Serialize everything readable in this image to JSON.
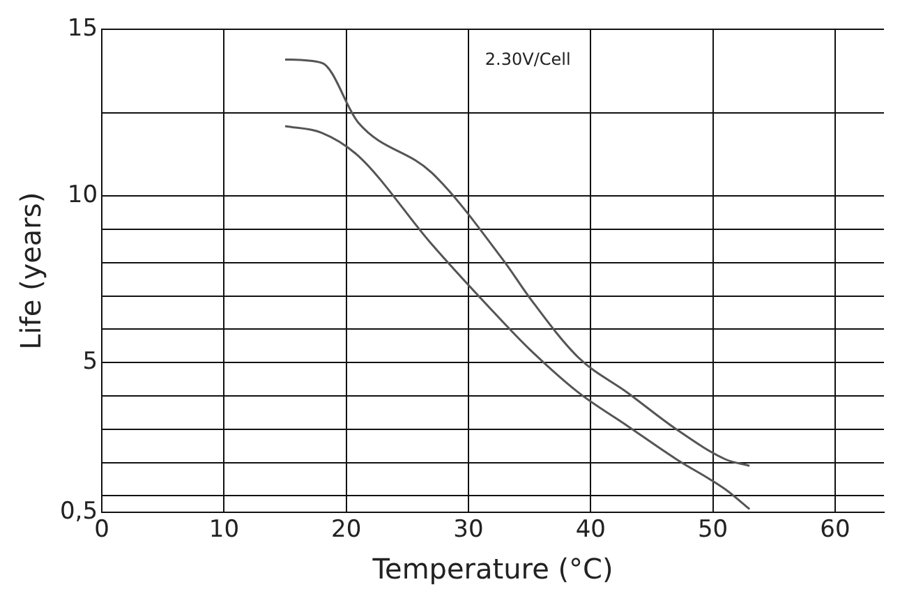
{
  "chart_data": {
    "type": "line",
    "xlabel": "Temperature (°C)",
    "ylabel": "Life (years)",
    "x": [
      15,
      18,
      21,
      27,
      33,
      35,
      39,
      43,
      47,
      51,
      53
    ],
    "series": [
      {
        "color": "#555555",
        "values": [
          12.1,
          11.9,
          11.2,
          8.55,
          6.15,
          5.4,
          4.1,
          3.1,
          2.1,
          1.2,
          0.6
        ]
      },
      {
        "color": "#555555",
        "values": [
          14.1,
          14.0,
          12.2,
          10.7,
          8.0,
          6.95,
          5.15,
          4.1,
          3.0,
          2.1,
          1.9
        ]
      }
    ],
    "xlim": [
      0,
      64
    ],
    "xticks": [
      0,
      10,
      20,
      30,
      40,
      50,
      60
    ],
    "ylim": [
      0.5,
      15
    ],
    "yticks": [
      {
        "value": 0.5,
        "label": "0,5"
      },
      {
        "value": 1,
        "label": null
      },
      {
        "value": 2,
        "label": null
      },
      {
        "value": 3,
        "label": null
      },
      {
        "value": 4,
        "label": null
      },
      5,
      {
        "value": 6,
        "label": null
      },
      {
        "value": 7,
        "label": null
      },
      {
        "value": 8,
        "label": null
      },
      {
        "value": 9,
        "label": null
      },
      10,
      {
        "value": 12.5,
        "label": null
      },
      15
    ],
    "grid": true,
    "annotations": [
      "2.30V/Cell"
    ]
  }
}
